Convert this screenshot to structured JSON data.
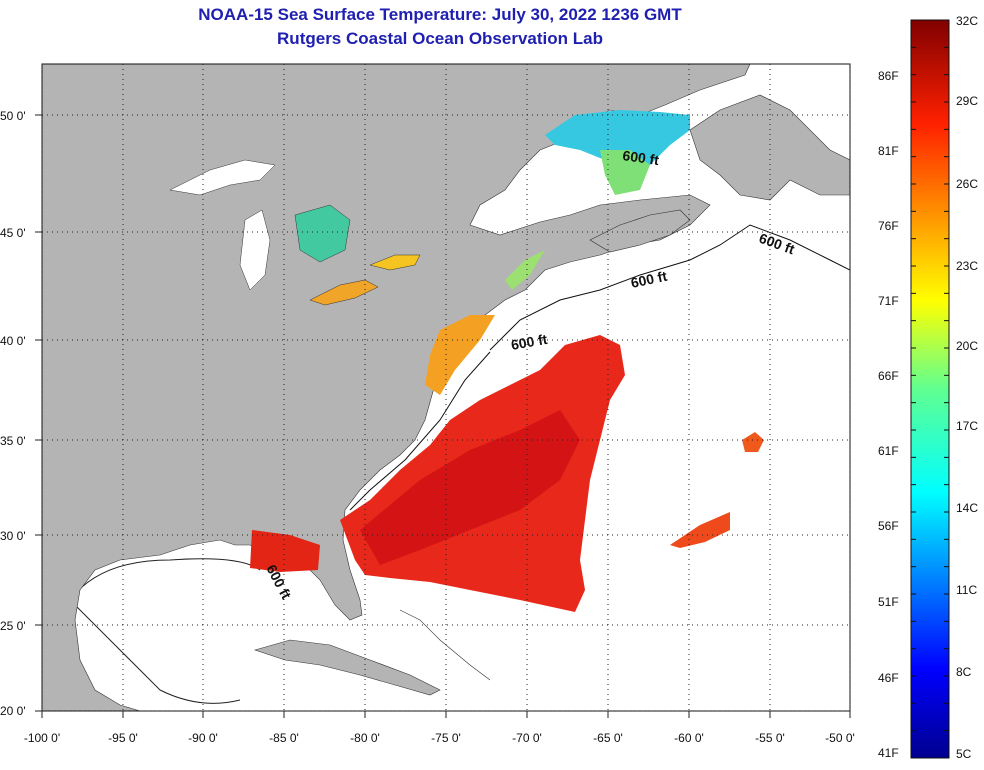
{
  "header": {
    "title": "NOAA-15 Sea Surface Temperature:  July 30, 2022 1236 GMT",
    "subtitle": "Rutgers Coastal Ocean Observation Lab"
  },
  "map": {
    "lon_ticks": [
      "-100 0'",
      "-95 0'",
      "-90 0'",
      "-85 0'",
      "-80 0'",
      "-75 0'",
      "-70 0'",
      "-65 0'",
      "-60 0'",
      "-55 0'",
      "-50 0'"
    ],
    "lat_ticks": [
      "20 0'",
      "25 0'",
      "30 0'",
      "35 0'",
      "40 0'",
      "45 0'",
      "50 0'"
    ],
    "contour_labels": [
      "600 ft",
      "600 ft",
      "600 ft",
      "600 ft",
      "600 ft"
    ],
    "colors": {
      "land": "#b4b4b4",
      "ocean_nodata": "#ffffff",
      "warm_sst": "#e8281a",
      "hot_sst": "#d41414"
    }
  },
  "colorbar": {
    "fahrenheit_labels": [
      "86F",
      "81F",
      "76F",
      "71F",
      "66F",
      "61F",
      "56F",
      "51F",
      "46F",
      "41F"
    ],
    "celsius_labels": [
      "32C",
      "29C",
      "26C",
      "23C",
      "20C",
      "17C",
      "14C",
      "11C",
      "8C",
      "5C"
    ]
  }
}
